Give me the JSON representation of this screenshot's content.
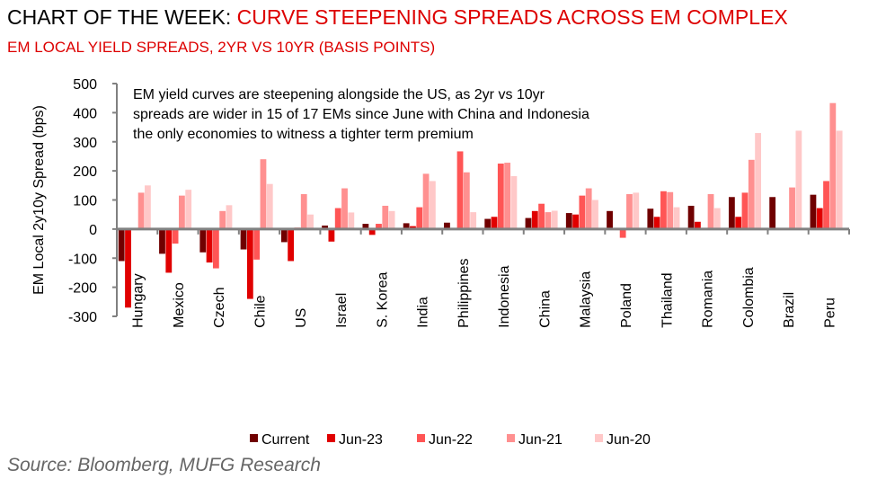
{
  "title_prefix": "CHART OF THE WEEK: ",
  "title_main": "CURVE STEEPENING SPREADS ACROSS EM COMPLEX",
  "subtitle": "EM LOCAL YIELD SPREADS, 2YR VS 10YR (BASIS POINTS)",
  "source": "Source: Bloomberg, MUFG Research",
  "chart_data": {
    "type": "bar",
    "ylabel": "EM Local 2y10y Spread (bps)",
    "ylim": [
      -300,
      500
    ],
    "yticks": [
      -300,
      -200,
      -100,
      0,
      100,
      200,
      300,
      400,
      500
    ],
    "grid": false,
    "legend": "bottom",
    "annotation": [
      "EM yield curves are steepening alongside the US, as 2yr vs 10yr",
      "spreads are wider in 15 of 17 EMs since June with China and Indonesia",
      "the only economies to witness a tighter term premium"
    ],
    "categories": [
      "Hungary",
      "Mexico",
      "Czech",
      "Chile",
      "US",
      "Israel",
      "S. Korea",
      "India",
      "Philippines",
      "Indonesia",
      "China",
      "Malaysia",
      "Poland",
      "Thailand",
      "Romania",
      "Colombia",
      "Brazil",
      "Peru"
    ],
    "series": [
      {
        "name": "Current",
        "color": "#700000",
        "values": [
          -110,
          -85,
          -80,
          -70,
          -45,
          12,
          18,
          20,
          22,
          35,
          38,
          55,
          62,
          70,
          80,
          110,
          110,
          118
        ]
      },
      {
        "name": "Jun-23",
        "color": "#e00000",
        "values": [
          -270,
          -150,
          -115,
          -240,
          -110,
          -43,
          -20,
          10,
          0,
          42,
          62,
          50,
          0,
          42,
          25,
          42,
          2,
          72
        ]
      },
      {
        "name": "Jun-22",
        "color": "#ff5555",
        "values": [
          0,
          -50,
          -135,
          -105,
          5,
          72,
          18,
          75,
          267,
          225,
          87,
          115,
          -30,
          130,
          0,
          125,
          0,
          165
        ]
      },
      {
        "name": "Jun-21",
        "color": "#ff9090",
        "values": [
          125,
          115,
          62,
          240,
          120,
          140,
          80,
          190,
          195,
          228,
          58,
          140,
          120,
          127,
          120,
          238,
          143,
          433
        ]
      },
      {
        "name": "Jun-20",
        "color": "#ffc8c8",
        "values": [
          150,
          135,
          82,
          155,
          50,
          57,
          62,
          165,
          58,
          182,
          63,
          100,
          125,
          75,
          72,
          330,
          338,
          338
        ]
      }
    ]
  }
}
